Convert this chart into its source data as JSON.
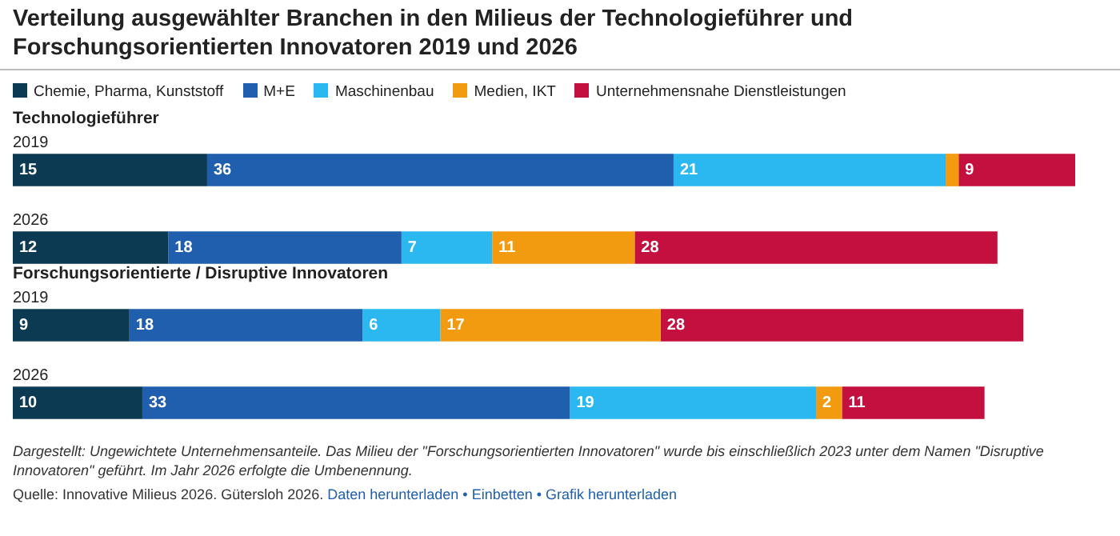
{
  "chart_data": {
    "type": "bar",
    "orientation": "horizontal",
    "stacked": true,
    "relative": false,
    "title": "Verteilung ausgewählter Branchen in den Milieus der Technologieführer und Forschungsorientierten Innovatoren 2019 und 2026",
    "categories": [
      "2019",
      "2026",
      "2019",
      "2026"
    ],
    "series": [
      {
        "name": "Chemie, Pharma, Kunststoff",
        "color": "#0c3a52",
        "values": [
          15,
          12,
          9,
          10
        ],
        "value_labels": [
          "15",
          "12",
          "9",
          "10"
        ]
      },
      {
        "name": "M+E",
        "color": "#1f5fae",
        "values": [
          36,
          18,
          18,
          33
        ],
        "value_labels": [
          "36",
          "18",
          "18",
          "33"
        ]
      },
      {
        "name": "Maschinenbau",
        "color": "#2bb8f0",
        "values": [
          21,
          7,
          6,
          19
        ],
        "value_labels": [
          "21",
          "7",
          "6",
          "19"
        ]
      },
      {
        "name": "Medien, IKT",
        "color": "#f29b11",
        "values": [
          1,
          11,
          17,
          2
        ],
        "value_labels": [
          null,
          "11",
          "17",
          "2"
        ]
      },
      {
        "name": "Unternehmensnahe Dienstleistungen",
        "color": "#c4103e",
        "values": [
          9,
          28,
          28,
          11
        ],
        "value_labels": [
          "9",
          "28",
          "28",
          "11"
        ]
      }
    ],
    "legend": "top left",
    "tick_labels": false,
    "annotations": [
      "Technologieführer",
      "Forschungsorientierte / Disruptive Innovatoren",
      "Dargestellt: Ungewichtete Unternehmensanteile. Das Milieu der \"Forschungsorientierten Innovatoren\" wurde bis einschließlich 2023 unter dem Namen \"Disruptive Innovatoren\" geführt. Im Jahr 2026 erfolgte die Umbenennung.",
      "Quelle: Innovative Milieus 2026. Gütersloh 2026.",
      "Daten herunterladen • Einbetten • Grafik herunterladen"
    ]
  }
}
